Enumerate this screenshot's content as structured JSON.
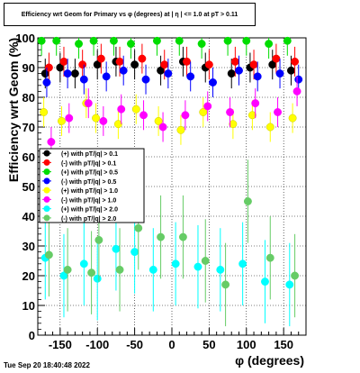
{
  "chart_data": {
    "type": "scatter",
    "title": "Efficiency wrt Geom for Primary vs φ (degrees) at | η | <= 1.0 at pT > 0.11",
    "xlabel": "φ (degrees)",
    "ylabel": "Efficiency wrt Geom (%)",
    "xlim": [
      -180,
      180
    ],
    "ylim": [
      0,
      100
    ],
    "x_ticks": [
      -150,
      -100,
      -50,
      0,
      50,
      100,
      150
    ],
    "x_tick_labels": [
      "-150",
      "-100",
      "-50",
      "0",
      "50",
      "100",
      "150"
    ],
    "y_ticks": [
      0,
      10,
      20,
      30,
      40,
      50,
      60,
      70,
      80,
      90,
      100
    ],
    "y_tick_labels": [
      "0",
      "10",
      "20",
      "30",
      "40",
      "50",
      "60",
      "70",
      "80",
      "90",
      "100"
    ],
    "grid": true,
    "legend_position": "left-middle",
    "series": [
      {
        "name": "(+) with pT/|q| > 0.1",
        "color": "#000000",
        "x": [
          -170,
          -150,
          -130,
          -100,
          -75,
          -50,
          -15,
          15,
          45,
          80,
          105,
          135,
          160
        ],
        "y": [
          88,
          90,
          88,
          91,
          92,
          91,
          89,
          92,
          90,
          88,
          90,
          91,
          89
        ]
      },
      {
        "name": "(-) with pT/|q| > 0.1",
        "color": "#ff0000",
        "x": [
          -165,
          -145,
          -120,
          -95,
          -70,
          -40,
          -10,
          20,
          50,
          85,
          110,
          140,
          165
        ],
        "y": [
          90,
          92,
          91,
          93,
          92,
          93,
          91,
          92,
          91,
          92,
          91,
          93,
          92
        ]
      },
      {
        "name": "(+) with pT/|q| > 0.5",
        "color": "#00dd00",
        "x": [
          -175,
          -155,
          -125,
          -105,
          -78,
          -55,
          -20,
          10,
          40,
          75,
          100,
          130,
          155
        ],
        "y": [
          99,
          99,
          98,
          99,
          99,
          98,
          99,
          99,
          98,
          99,
          99,
          98,
          99
        ]
      },
      {
        "name": "(-) with pT/|q| > 0.5",
        "color": "#0000ff",
        "x": [
          -168,
          -140,
          -118,
          -88,
          -65,
          -35,
          -5,
          25,
          55,
          90,
          115,
          145,
          170
        ],
        "y": [
          85,
          88,
          86,
          87,
          89,
          86,
          88,
          87,
          85,
          89,
          87,
          88,
          86
        ]
      },
      {
        "name": "(+) with pT/|q| > 1.0",
        "color": "#ffff00",
        "x": [
          -172,
          -148,
          -115,
          -102,
          -72,
          -48,
          -18,
          12,
          42,
          82,
          108,
          132,
          162
        ],
        "y": [
          75,
          72,
          78,
          73,
          71,
          76,
          72,
          69,
          75,
          71,
          74,
          70,
          73
        ]
      },
      {
        "name": "(-) with pT/|q| > 1.0",
        "color": "#ff00ff",
        "x": [
          -162,
          -138,
          -112,
          -92,
          -68,
          -38,
          -12,
          18,
          48,
          78,
          112,
          142,
          168
        ],
        "y": [
          65,
          73,
          78,
          72,
          76,
          74,
          70,
          74,
          77,
          75,
          78,
          75,
          82
        ]
      },
      {
        "name": "(+) with pT/|q| > 2.0",
        "color": "#00ffff",
        "x": [
          -170,
          -145,
          -118,
          -100,
          -75,
          -50,
          -25,
          5,
          35,
          65,
          95,
          125,
          158
        ],
        "y": [
          26,
          20,
          24,
          19,
          29,
          28,
          22,
          24,
          23,
          22,
          24,
          18,
          17
        ]
      },
      {
        "name": "(-) with pT/|q| > 2.0",
        "color": "#66cc66",
        "x": [
          -165,
          -140,
          -108,
          -98,
          -70,
          -45,
          -15,
          15,
          45,
          72,
          102,
          132,
          165
        ],
        "y": [
          27,
          22,
          21,
          32,
          22,
          36,
          33,
          33,
          25,
          17,
          45,
          26,
          20
        ]
      }
    ]
  },
  "footer_timestamp": "Tue Sep 20 18:40:48 2022"
}
